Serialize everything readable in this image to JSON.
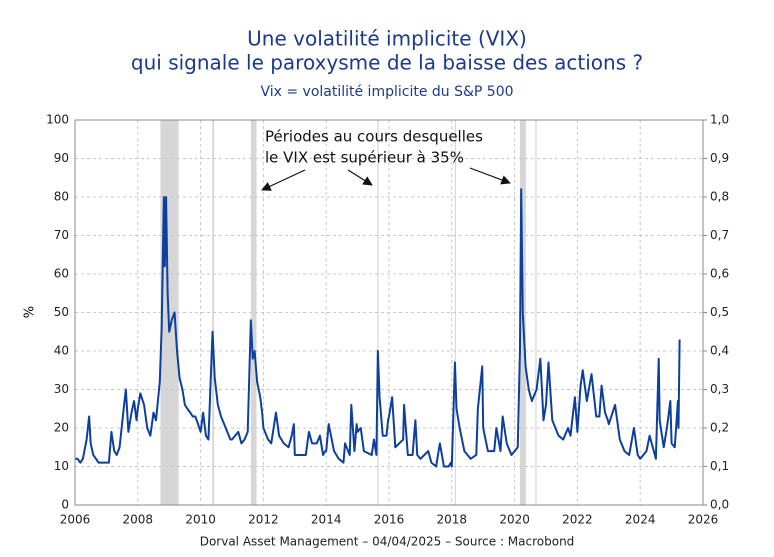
{
  "chart_data": {
    "type": "line",
    "title": [
      "Une volatilité implicite (VIX)",
      "qui signale le paroxysme de la baisse des actions ?"
    ],
    "subtitle": "Vix = volatilité implicite du S&P 500",
    "ylabel": "%",
    "annotation": [
      "Périodes au cours desquelles",
      "le VIX est supérieur à 35%"
    ],
    "footer": "Dorval Asset Management – 04/04/2025 –   Source : Macrobond",
    "xlim": [
      2006,
      2026
    ],
    "xticks": [
      2006,
      2008,
      2010,
      2012,
      2014,
      2016,
      2018,
      2020,
      2022,
      2024,
      2026
    ],
    "ylim": [
      0,
      100
    ],
    "yticks": [
      0,
      10,
      20,
      30,
      40,
      50,
      60,
      70,
      80,
      90,
      100
    ],
    "y2lim": [
      0,
      1
    ],
    "y2ticks": [
      {
        "value": 0,
        "label": "0,0"
      },
      {
        "value": 0.1,
        "label": "0,1"
      },
      {
        "value": 0.2,
        "label": "0,2"
      },
      {
        "value": 0.3,
        "label": "0,3"
      },
      {
        "value": 0.4,
        "label": "0,4"
      },
      {
        "value": 0.5,
        "label": "0,5"
      },
      {
        "value": 0.6,
        "label": "0,6"
      },
      {
        "value": 0.7,
        "label": "0,7"
      },
      {
        "value": 0.8,
        "label": "0,8"
      },
      {
        "value": 0.9,
        "label": "0,9"
      },
      {
        "value": 1,
        "label": "1,0"
      }
    ],
    "grid": true,
    "shade_color": "#d6d6d6",
    "shaded_periods": [
      [
        2008.72,
        2009.3
      ],
      [
        2010.37,
        2010.43
      ],
      [
        2011.6,
        2011.78
      ],
      [
        2015.63,
        2015.67
      ],
      [
        2018.1,
        2018.13
      ],
      [
        2020.17,
        2020.36
      ],
      [
        2020.66,
        2020.7
      ]
    ],
    "x": [
      2006.0,
      2006.08,
      2006.17,
      2006.25,
      2006.37,
      2006.45,
      2006.5,
      2006.58,
      2006.67,
      2006.75,
      2006.83,
      2006.92,
      2007.0,
      2007.08,
      2007.16,
      2007.25,
      2007.33,
      2007.42,
      2007.55,
      2007.62,
      2007.7,
      2007.8,
      2007.88,
      2007.96,
      2008.0,
      2008.08,
      2008.2,
      2008.3,
      2008.4,
      2008.5,
      2008.58,
      2008.7,
      2008.76,
      2008.81,
      2008.83,
      2008.86,
      2008.9,
      2008.95,
      2009.0,
      2009.08,
      2009.17,
      2009.25,
      2009.33,
      2009.42,
      2009.5,
      2009.58,
      2009.67,
      2009.75,
      2009.83,
      2009.92,
      2010.0,
      2010.08,
      2010.17,
      2010.25,
      2010.38,
      2010.45,
      2010.55,
      2010.65,
      2010.75,
      2010.85,
      2010.95,
      2011.0,
      2011.1,
      2011.2,
      2011.3,
      2011.4,
      2011.5,
      2011.6,
      2011.66,
      2011.72,
      2011.8,
      2011.9,
      2011.96,
      2012.0,
      2012.15,
      2012.25,
      2012.4,
      2012.5,
      2012.65,
      2012.8,
      2012.9,
      2012.97,
      2013.0,
      2013.15,
      2013.35,
      2013.45,
      2013.55,
      2013.7,
      2013.8,
      2013.9,
      2013.97,
      2014.0,
      2014.08,
      2014.25,
      2014.4,
      2014.55,
      2014.6,
      2014.75,
      2014.8,
      2014.9,
      2014.97,
      2015.0,
      2015.1,
      2015.2,
      2015.45,
      2015.52,
      2015.6,
      2015.645,
      2015.7,
      2015.8,
      2015.92,
      2015.97,
      2016.0,
      2016.1,
      2016.2,
      2016.45,
      2016.48,
      2016.6,
      2016.75,
      2016.84,
      2016.9,
      2017.0,
      2017.25,
      2017.35,
      2017.5,
      2017.62,
      2017.75,
      2017.9,
      2017.97,
      2018.0,
      2018.1,
      2018.15,
      2018.25,
      2018.4,
      2018.6,
      2018.78,
      2018.83,
      2018.97,
      2019.0,
      2019.15,
      2019.35,
      2019.42,
      2019.55,
      2019.62,
      2019.75,
      2019.9,
      2020.0,
      2020.1,
      2020.17,
      2020.21,
      2020.26,
      2020.35,
      2020.45,
      2020.55,
      2020.7,
      2020.82,
      2020.92,
      2021.0,
      2021.08,
      2021.2,
      2021.4,
      2021.55,
      2021.7,
      2021.78,
      2021.92,
      2022.0,
      2022.1,
      2022.17,
      2022.3,
      2022.45,
      2022.6,
      2022.7,
      2022.77,
      2022.88,
      2022.97,
      2023.0,
      2023.2,
      2023.35,
      2023.5,
      2023.65,
      2023.8,
      2023.92,
      2024.0,
      2024.2,
      2024.3,
      2024.5,
      2024.59,
      2024.62,
      2024.75,
      2024.85,
      2024.96,
      2025.0,
      2025.1,
      2025.16,
      2025.2,
      2025.22,
      2025.255
    ],
    "series": [
      {
        "name": "VIX",
        "color": "#0d3f9f",
        "values": [
          12,
          12,
          11,
          12,
          17,
          23,
          16,
          13,
          12,
          11,
          11,
          11,
          11,
          11,
          19,
          14,
          13,
          15,
          25,
          30,
          19,
          24,
          27,
          22,
          25,
          29,
          26,
          20,
          18,
          24,
          22,
          32,
          46,
          70,
          80,
          62,
          80,
          55,
          45,
          48,
          50,
          40,
          33,
          30,
          26,
          25,
          24,
          23,
          23,
          21,
          19,
          24,
          18,
          17,
          45,
          33,
          26,
          23,
          21,
          19,
          17,
          17,
          18,
          19,
          16,
          17,
          19,
          48,
          38,
          40,
          32,
          28,
          24,
          20,
          17,
          16,
          24,
          18,
          16,
          15,
          18,
          21,
          13,
          13,
          13,
          19,
          16,
          16,
          18,
          13,
          14,
          14,
          21,
          14,
          12,
          11,
          16,
          13,
          26,
          14,
          21,
          19,
          20,
          14,
          13,
          17,
          13,
          40,
          28,
          18,
          18,
          22,
          23,
          28,
          15,
          17,
          26,
          13,
          13,
          22,
          13,
          12,
          14,
          11,
          10,
          16,
          10,
          10,
          11,
          10,
          37,
          25,
          20,
          14,
          12,
          13,
          25,
          36,
          20,
          14,
          14,
          20,
          14,
          23,
          16,
          13,
          14,
          15,
          40,
          82,
          50,
          36,
          30,
          27,
          30,
          38,
          22,
          26,
          37,
          22,
          18,
          17,
          20,
          18,
          28,
          19,
          31,
          35,
          27,
          34,
          23,
          23,
          31,
          24,
          22,
          21,
          26,
          17,
          14,
          13,
          20,
          13,
          12,
          14,
          18,
          12,
          38,
          22,
          15,
          20,
          27,
          16,
          15,
          22,
          27,
          20,
          43
        ]
      }
    ]
  }
}
